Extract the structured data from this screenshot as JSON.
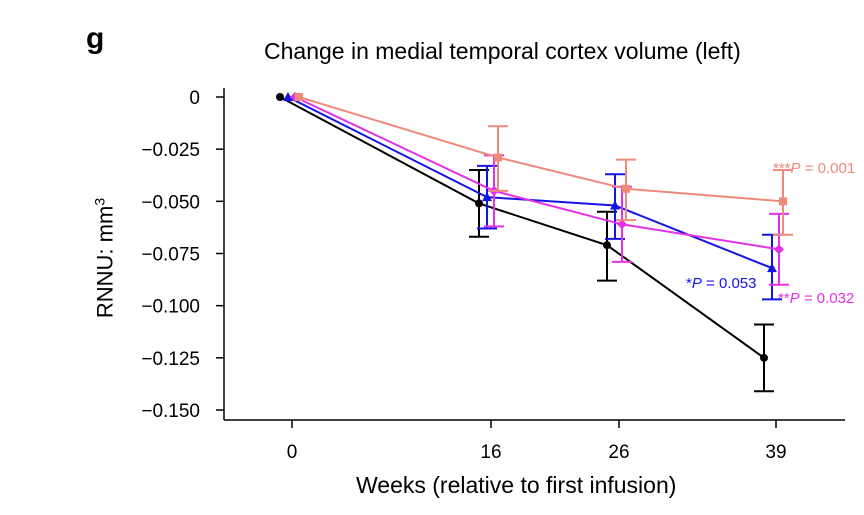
{
  "panel_label": "g",
  "chart_data": {
    "type": "line",
    "title": "Change in medial temporal cortex volume (left)",
    "xlabel": "Weeks (relative to first infusion)",
    "ylabel": "RNNU: mm",
    "ylabel_superscript": "3",
    "x_ticks": [
      "0",
      "16",
      "26",
      "39"
    ],
    "y_ticks": [
      "0",
      "−0.025",
      "−0.050",
      "−0.075",
      "−0.100",
      "−0.125",
      "−0.150"
    ],
    "y_tick_values": [
      0,
      -0.025,
      -0.05,
      -0.075,
      -0.1,
      -0.125,
      -0.15
    ],
    "ylim": [
      -0.15,
      0
    ],
    "grid": false,
    "series": [
      {
        "color": "#000000",
        "marker": "circle",
        "x_index": [
          0,
          1,
          2,
          3
        ],
        "values": [
          0,
          -0.051,
          -0.071,
          -0.125
        ],
        "err_low": [
          0,
          -0.067,
          -0.088,
          -0.141
        ],
        "err_high": [
          0,
          -0.035,
          -0.055,
          -0.109
        ]
      },
      {
        "color": "#1414e6",
        "marker": "triangle",
        "x_index": [
          0,
          1,
          2,
          3
        ],
        "values": [
          0,
          -0.048,
          -0.052,
          -0.082
        ],
        "err_low": [
          0,
          -0.063,
          -0.068,
          -0.097
        ],
        "err_high": [
          0,
          -0.033,
          -0.037,
          -0.066
        ],
        "annotation": {
          "star": "*",
          "p": "P",
          "rest": " = 0.053"
        }
      },
      {
        "color": "#e630e6",
        "marker": "diamond",
        "x_index": [
          0,
          1,
          2,
          3
        ],
        "values": [
          0,
          -0.045,
          -0.061,
          -0.073
        ],
        "err_low": [
          0,
          -0.062,
          -0.079,
          -0.09
        ],
        "err_high": [
          0,
          -0.028,
          -0.043,
          -0.056
        ],
        "annotation": {
          "star": "**",
          "p": "P",
          "rest": " = 0.032"
        }
      },
      {
        "color": "#ed8a7a",
        "marker": "square",
        "x_index": [
          0,
          1,
          2,
          3
        ],
        "values": [
          0,
          -0.029,
          -0.044,
          -0.05
        ],
        "err_low": [
          0,
          -0.045,
          -0.059,
          -0.066
        ],
        "err_high": [
          0,
          -0.014,
          -0.03,
          -0.035
        ],
        "annotation": {
          "star": "***",
          "p": "P",
          "rest": " = 0.001"
        }
      }
    ]
  }
}
